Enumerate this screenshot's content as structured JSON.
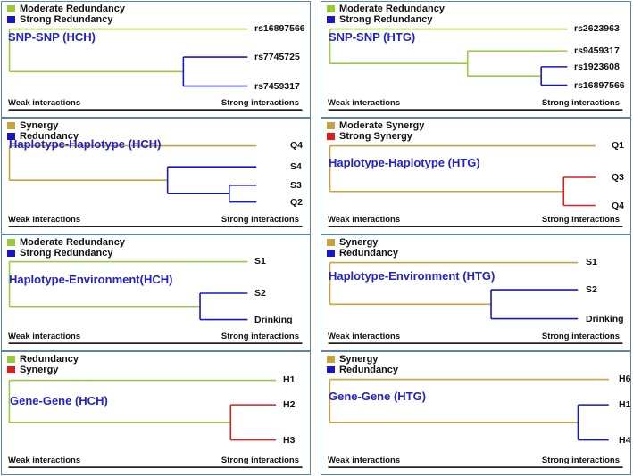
{
  "colors": {
    "green": "#9ac93a",
    "blue": "#1616c4",
    "gold": "#c9a23a",
    "red": "#e11b1b",
    "title": "#2323c8",
    "border": "#5b84b1",
    "axis": "#000000"
  },
  "axis": {
    "weak_label": "Weak interactions",
    "strong_label": "Strong interactions"
  },
  "panels": [
    {
      "id": "snp-hch",
      "title": "SNP-SNP (HCH)",
      "legend": [
        {
          "label": "Moderate Redundancy",
          "color": "green"
        },
        {
          "label": "Strong Redundancy",
          "color": "blue"
        }
      ],
      "leaves": [
        "rs16897566",
        "rs7745725",
        "rs7459317"
      ],
      "branches": [
        {
          "color": "green",
          "join": 0.0,
          "children": [
            "leaf:0",
            "node:1"
          ]
        },
        {
          "color": "blue",
          "join": 0.73,
          "children": [
            "leaf:1",
            "leaf:2"
          ]
        }
      ]
    },
    {
      "id": "snp-htg",
      "title": "SNP-SNP (HTG)",
      "legend": [
        {
          "label": "Moderate Redundancy",
          "color": "green"
        },
        {
          "label": "Strong Redundancy",
          "color": "blue"
        }
      ],
      "leaves": [
        "rs2623963",
        "rs9459317",
        "rs1923608",
        "rs16897566"
      ],
      "branches": [
        {
          "color": "green",
          "join": 0.0,
          "children": [
            "leaf:0",
            "node:1"
          ]
        },
        {
          "color": "green",
          "join": 0.58,
          "children": [
            "leaf:1",
            "node:2"
          ]
        },
        {
          "color": "blue",
          "join": 0.89,
          "children": [
            "leaf:2",
            "leaf:3"
          ]
        }
      ]
    },
    {
      "id": "hap-hch",
      "title": "Haplotype-Haplotype (HCH)",
      "legend": [
        {
          "label": "Synergy",
          "color": "gold"
        },
        {
          "label": "Redundancy",
          "color": "blue"
        }
      ],
      "leaves": [
        "Q4",
        "S4",
        "S3",
        "Q2"
      ],
      "branches": [
        {
          "color": "gold",
          "join": 0.0,
          "children": [
            "leaf:0",
            "node:1"
          ]
        },
        {
          "color": "blue",
          "join": 0.64,
          "children": [
            "leaf:1",
            "node:2"
          ]
        },
        {
          "color": "blue",
          "join": 0.89,
          "children": [
            "leaf:2",
            "leaf:3"
          ]
        }
      ]
    },
    {
      "id": "hap-htg",
      "title": "Haplotype-Haplotype (HTG)",
      "legend": [
        {
          "label": "Moderate Synergy",
          "color": "gold"
        },
        {
          "label": "Strong Synergy",
          "color": "red"
        }
      ],
      "leaves": [
        "Q1",
        "Q3",
        "Q4"
      ],
      "branches": [
        {
          "color": "gold",
          "join": 0.0,
          "children": [
            "leaf:0",
            "node:1"
          ]
        },
        {
          "color": "red",
          "join": 0.88,
          "children": [
            "leaf:1",
            "leaf:2"
          ]
        }
      ]
    },
    {
      "id": "env-hch",
      "title": "Haplotype-Environment(HCH)",
      "legend": [
        {
          "label": "Moderate Redundancy",
          "color": "green"
        },
        {
          "label": "Strong Redundancy",
          "color": "blue"
        }
      ],
      "leaves": [
        "S1",
        "S2",
        "Drinking"
      ],
      "branches": [
        {
          "color": "green",
          "join": 0.0,
          "children": [
            "leaf:0",
            "node:1"
          ]
        },
        {
          "color": "blue",
          "join": 0.8,
          "children": [
            "leaf:1",
            "leaf:2"
          ]
        }
      ]
    },
    {
      "id": "env-htg",
      "title": "Haplotype-Environment (HTG)",
      "legend": [
        {
          "label": "Synergy",
          "color": "gold"
        },
        {
          "label": "Redundancy",
          "color": "blue"
        }
      ],
      "leaves": [
        "S1",
        "S2",
        "Drinking"
      ],
      "branches": [
        {
          "color": "gold",
          "join": 0.0,
          "children": [
            "leaf:0",
            "node:1"
          ]
        },
        {
          "color": "blue",
          "join": 0.65,
          "children": [
            "leaf:1",
            "leaf:2"
          ]
        }
      ]
    },
    {
      "id": "gene-hch",
      "title": "Gene-Gene (HCH)",
      "legend": [
        {
          "label": "Redundancy",
          "color": "green"
        },
        {
          "label": "Synergy",
          "color": "red"
        }
      ],
      "leaves": [
        "H1",
        "H2",
        "H3"
      ],
      "branches": [
        {
          "color": "green",
          "join": 0.0,
          "children": [
            "leaf:0",
            "node:1"
          ]
        },
        {
          "color": "red",
          "join": 0.83,
          "children": [
            "leaf:1",
            "leaf:2"
          ]
        }
      ]
    },
    {
      "id": "gene-htg",
      "title": "Gene-Gene (HTG)",
      "legend": [
        {
          "label": "Synergy",
          "color": "gold"
        },
        {
          "label": "Redundancy",
          "color": "blue"
        }
      ],
      "leaves": [
        "H6",
        "H1",
        "H4"
      ],
      "branches": [
        {
          "color": "gold",
          "join": 0.0,
          "children": [
            "leaf:0",
            "node:1"
          ]
        },
        {
          "color": "blue",
          "join": 0.89,
          "children": [
            "leaf:1",
            "leaf:2"
          ]
        }
      ]
    }
  ]
}
